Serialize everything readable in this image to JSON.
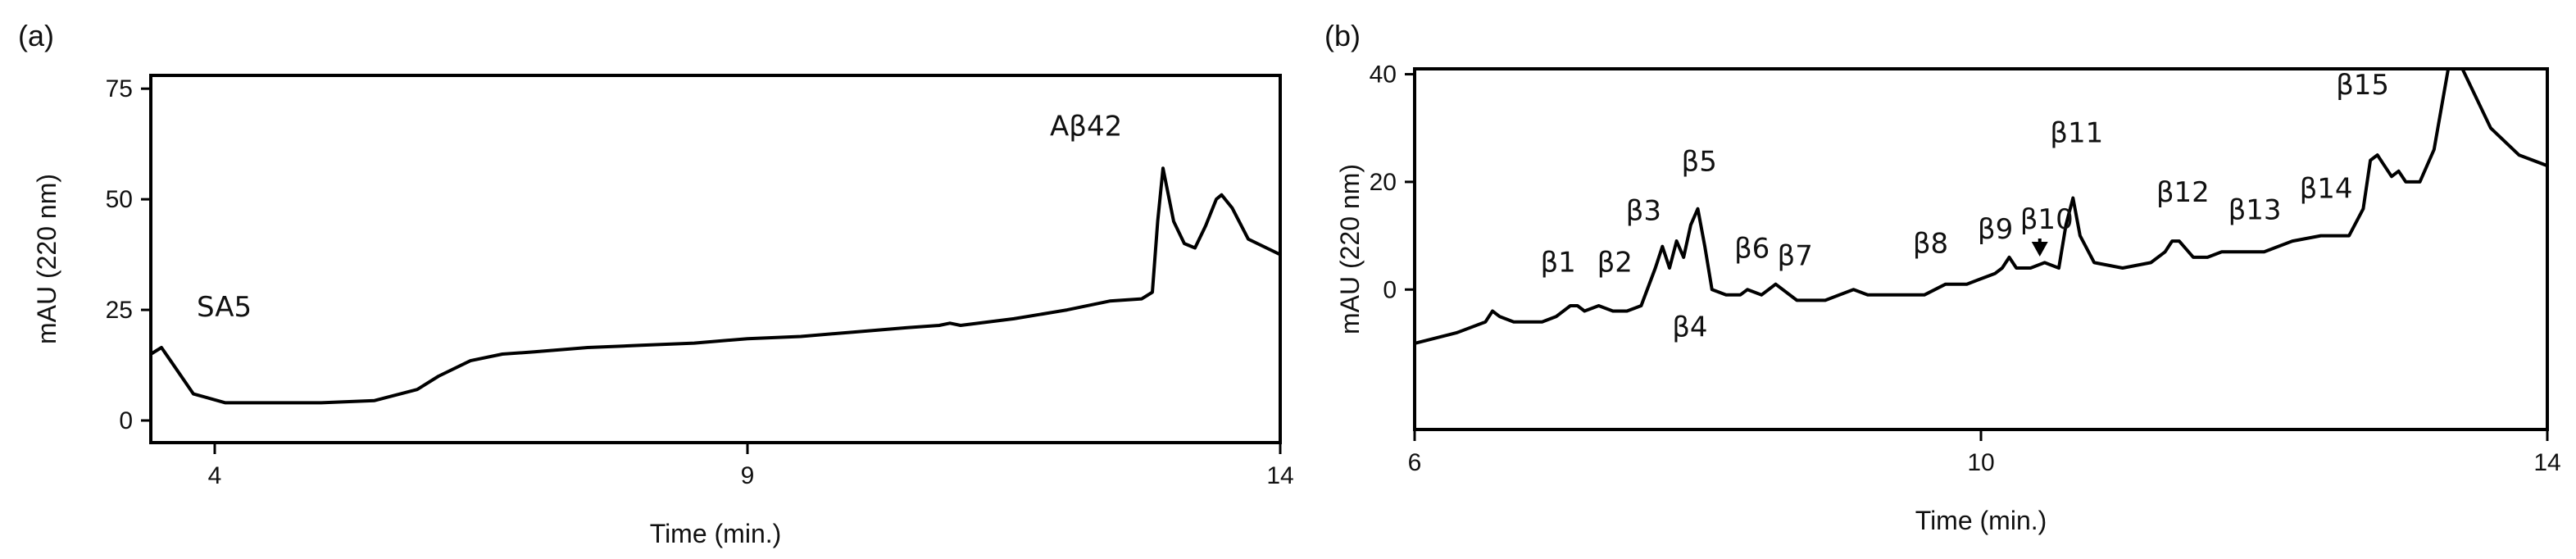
{
  "chart_data": [
    {
      "panel": "(a)",
      "type": "line",
      "xlabel": "Time (min.)",
      "ylabel": "mAU (220 nm)",
      "xlim": [
        3.4,
        14
      ],
      "ylim": [
        -5,
        78
      ],
      "xticks": [
        "4",
        "9",
        "14"
      ],
      "yticks": [
        "0",
        "25",
        "50",
        "75"
      ],
      "series": [
        {
          "x": [
            3.4,
            3.5,
            3.6,
            3.8,
            4.1,
            4.5,
            5.0,
            5.5,
            5.9,
            6.1,
            6.4,
            6.7,
            7.0,
            7.5,
            8.0,
            8.5,
            9.0,
            9.5,
            10.0,
            10.5,
            10.8,
            10.9,
            11.0,
            11.5,
            12.0,
            12.4,
            12.7,
            12.8,
            12.85,
            12.9,
            13.0,
            13.1,
            13.2,
            13.3,
            13.4,
            13.45,
            13.55,
            13.7,
            14.0
          ],
          "y": [
            15,
            16.5,
            13,
            6,
            4,
            4,
            4,
            4.5,
            7,
            10,
            13.5,
            15,
            15.5,
            16.5,
            17,
            17.5,
            18.5,
            19,
            20,
            21,
            21.5,
            22,
            21.5,
            23,
            25,
            27,
            27.5,
            29,
            45,
            57,
            45,
            40,
            39,
            44,
            50,
            51,
            48,
            41,
            37.5
          ]
        }
      ],
      "annotations": [
        {
          "text": "SA5",
          "x": 3.6,
          "y": 16.5
        },
        {
          "text": "Aβ42",
          "x": 12.9,
          "y": 57
        }
      ]
    },
    {
      "panel": "(b)",
      "type": "line",
      "xlabel": "Time (min.)",
      "ylabel": "mAU (220 nm)",
      "xlim": [
        6,
        14
      ],
      "ylim": [
        -26,
        41
      ],
      "xticks": [
        "6",
        "10",
        "14"
      ],
      "yticks": [
        "0",
        "20",
        "40"
      ],
      "series": [
        {
          "x": [
            6.0,
            6.3,
            6.5,
            6.55,
            6.6,
            6.7,
            6.9,
            7.0,
            7.1,
            7.15,
            7.2,
            7.3,
            7.4,
            7.5,
            7.6,
            7.7,
            7.75,
            7.8,
            7.85,
            7.9,
            7.95,
            8.0,
            8.05,
            8.1,
            8.2,
            8.3,
            8.35,
            8.45,
            8.55,
            8.7,
            8.9,
            9.0,
            9.1,
            9.2,
            9.4,
            9.6,
            9.75,
            9.9,
            10.0,
            10.1,
            10.15,
            10.2,
            10.25,
            10.35,
            10.45,
            10.55,
            10.6,
            10.65,
            10.7,
            10.8,
            11.0,
            11.2,
            11.3,
            11.35,
            11.4,
            11.5,
            11.6,
            11.7,
            11.8,
            11.9,
            12.0,
            12.2,
            12.4,
            12.6,
            12.7,
            12.75,
            12.8,
            12.85,
            12.9,
            12.95,
            13.0,
            13.1,
            13.2,
            13.3,
            13.4,
            13.6,
            13.8,
            14.0
          ],
          "y": [
            -10,
            -8,
            -6,
            -4,
            -5,
            -6,
            -6,
            -5,
            -3,
            -3,
            -4,
            -3,
            -4,
            -4,
            -3,
            4,
            8,
            4,
            9,
            6,
            12,
            15,
            8,
            0,
            -1,
            -1,
            0,
            -1,
            1,
            -2,
            -2,
            -1,
            0,
            -1,
            -1,
            -1,
            1,
            1,
            2,
            3,
            4,
            6,
            4,
            4,
            5,
            4,
            12,
            17,
            10,
            5,
            4,
            5,
            7,
            9,
            9,
            6,
            6,
            7,
            7,
            7,
            7,
            9,
            10,
            10,
            15,
            24,
            25,
            23,
            21,
            22,
            20,
            20,
            26,
            41,
            41,
            30,
            25,
            23
          ]
        }
      ],
      "annotations": [
        {
          "text": "β1",
          "x": 6.9,
          "y": -4
        },
        {
          "text": "β2",
          "x": 7.3,
          "y": -4
        },
        {
          "text": "β3",
          "x": 7.7,
          "y": 8
        },
        {
          "text": "β4",
          "x": 7.9,
          "y": -2
        },
        {
          "text": "β5",
          "x": 8.0,
          "y": 15
        },
        {
          "text": "β6",
          "x": 8.35,
          "y": 1
        },
        {
          "text": "β7",
          "x": 8.55,
          "y": 0
        },
        {
          "text": "β8",
          "x": 9.75,
          "y": 1
        },
        {
          "text": "β9",
          "x": 10.15,
          "y": 4
        },
        {
          "text": "β10",
          "x": 10.45,
          "y": 4,
          "arrow": true
        },
        {
          "text": "β11",
          "x": 10.65,
          "y": 17
        },
        {
          "text": "β12",
          "x": 11.4,
          "y": 9
        },
        {
          "text": "β13",
          "x": 11.85,
          "y": 7
        },
        {
          "text": "β14",
          "x": 12.4,
          "y": 10
        },
        {
          "text": "β15",
          "x": 12.75,
          "y": 25
        }
      ]
    }
  ]
}
